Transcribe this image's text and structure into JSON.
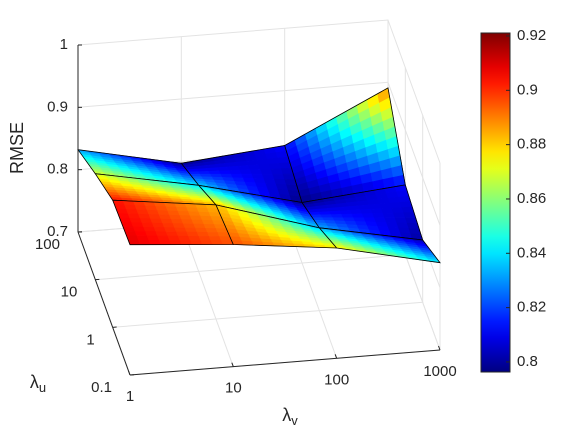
{
  "chart_data": {
    "type": "surface",
    "zlabel": "RMSE",
    "xlabel": {
      "symbol": "λ",
      "subscript": "v"
    },
    "ylabel": {
      "symbol": "λ",
      "subscript": "u"
    },
    "x": [
      1,
      10,
      100,
      1000
    ],
    "xscale": "log",
    "xlim": [
      1,
      1000
    ],
    "xticks": [
      1,
      10,
      100,
      1000
    ],
    "y": [
      0.1,
      1,
      10,
      100
    ],
    "yscale": "log",
    "ylim": [
      0.1,
      100
    ],
    "yticks": [
      0.1,
      1,
      10,
      100
    ],
    "zlim": [
      0.7,
      1
    ],
    "zticks": [
      0.7,
      0.8,
      0.9,
      1
    ],
    "z": [
      [
        0.909,
        0.896,
        0.877,
        0.84
      ],
      [
        0.904,
        0.883,
        0.833,
        0.8
      ],
      [
        0.87,
        0.838,
        0.797,
        0.812
      ],
      [
        0.832,
        0.797,
        0.812,
        0.891
      ]
    ],
    "colormap": "jet",
    "clim": [
      0.7963,
      0.9211
    ],
    "cticks": [
      0.8,
      0.82,
      0.84,
      0.86,
      0.88,
      0.9,
      0.92
    ],
    "grid": true
  }
}
